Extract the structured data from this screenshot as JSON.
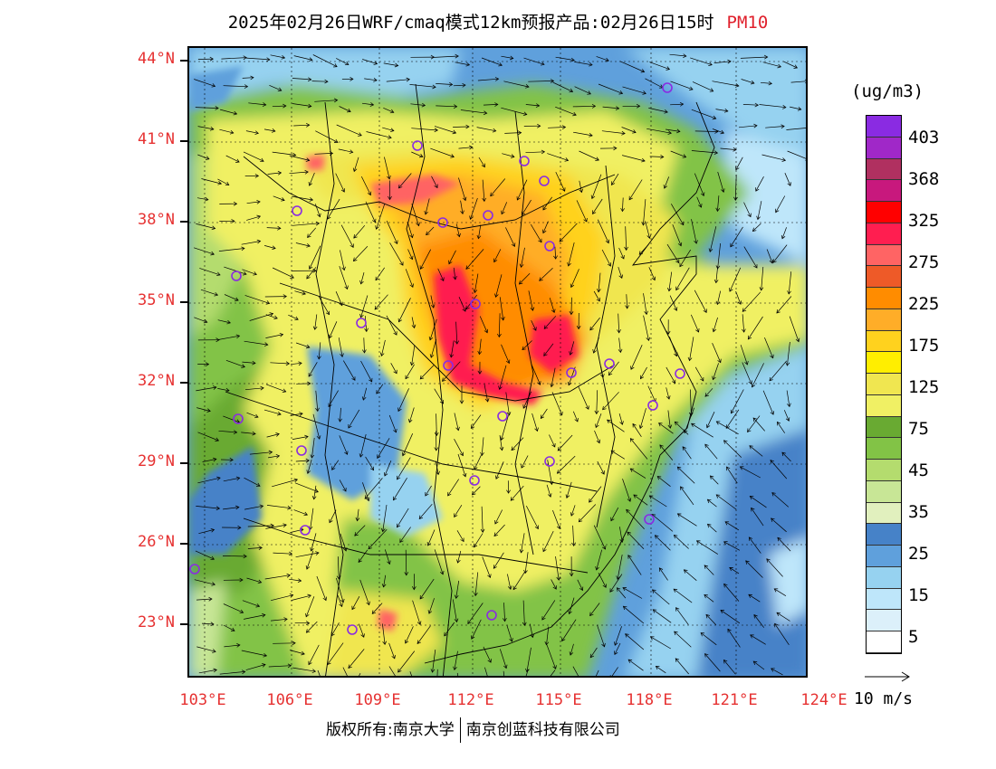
{
  "title": {
    "main": "2025年02月26日WRF/cmaq模式12km预报产品:02月26日15时",
    "product": "PM10"
  },
  "axes": {
    "lat_labels": [
      "44°N",
      "41°N",
      "38°N",
      "35°N",
      "32°N",
      "29°N",
      "26°N",
      "23°N"
    ],
    "lon_labels": [
      "103°E",
      "106°E",
      "109°E",
      "112°E",
      "115°E",
      "118°E",
      "121°E",
      "124°E"
    ]
  },
  "legend": {
    "unit": "(ug/m3)",
    "labels": [
      "403",
      "368",
      "325",
      "275",
      "225",
      "175",
      "125",
      "75",
      "45",
      "35",
      "25",
      "15",
      "5"
    ],
    "colors": [
      "#8a2be2",
      "#a028c8",
      "#b03060",
      "#c8187d",
      "#ff0000",
      "#ff1e50",
      "#ff6464",
      "#ee5a28",
      "#ff8c00",
      "#ffad28",
      "#ffd21e",
      "#ffee00",
      "#f0e650",
      "#f0f064",
      "#69aa32",
      "#82c346",
      "#b4dc6e",
      "#c8e696",
      "#e1f0be",
      "#4682c8",
      "#5fa0dc",
      "#96d2f0",
      "#bee6fa",
      "#dcf0fa",
      "#ffffff"
    ],
    "wind_ref": "10 m/s"
  },
  "cities": [
    "c1",
    "c2",
    "c3",
    "c4",
    "c5",
    "c6",
    "c7",
    "c8",
    "c9",
    "c10",
    "c11",
    "c12",
    "c13",
    "c14",
    "c15",
    "c16",
    "c17",
    "c18",
    "c19",
    "c20",
    "c21",
    "c22",
    "c23",
    "c24",
    "c25",
    "c26"
  ],
  "copyright": {
    "left": "版权所有:南京大学",
    "right": "南京创蓝科技有限公司"
  }
}
